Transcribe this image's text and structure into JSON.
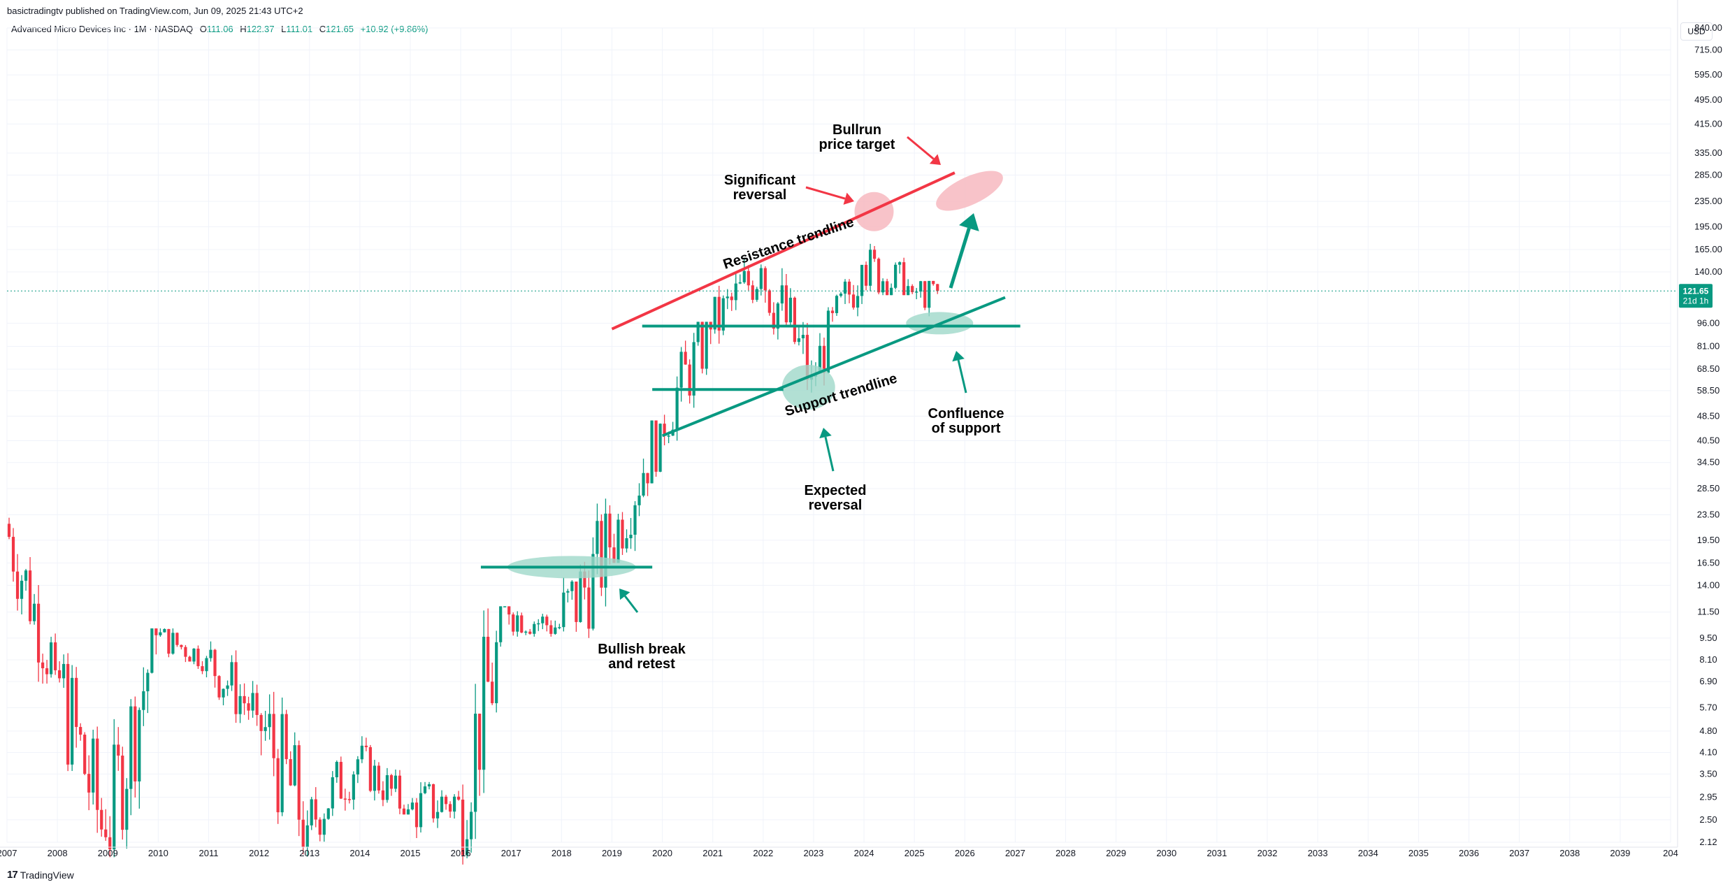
{
  "header": {
    "publisher": "basictradingtv published on TradingView.com, Jun 09, 2025 21:43 UTC+2",
    "symbol": "Advanced Micro Devices Inc · 1M · NASDAQ",
    "open_label": "O",
    "open": "111.06",
    "high_label": "H",
    "high": "122.37",
    "low_label": "L",
    "low": "111.01",
    "close_label": "C",
    "close": "121.65",
    "change": "+10.92 (+9.86%)",
    "currency": "USD"
  },
  "footer": {
    "logo": "17",
    "brand": "TradingView"
  },
  "colors": {
    "up": "#089981",
    "down": "#f23645",
    "resistance": "#f23645",
    "support": "#089981",
    "red_zone": "#f7b9c0",
    "green_zone": "#9fd8c9",
    "grid": "#f0f3fa"
  },
  "chart_data": {
    "type": "candlestick",
    "symbol": "Advanced Micro Devices Inc",
    "interval": "1M",
    "exchange": "NASDAQ",
    "y_scale": "log",
    "ylim": [
      2.12,
      840
    ],
    "xlim": [
      2007,
      2040
    ],
    "y_ticks": [
      "840.00",
      "715.00",
      "595.00",
      "495.00",
      "415.00",
      "335.00",
      "285.00",
      "235.00",
      "195.00",
      "165.00",
      "140.00",
      "96.00",
      "81.00",
      "68.50",
      "58.50",
      "48.50",
      "40.50",
      "34.50",
      "28.50",
      "23.50",
      "19.50",
      "16.50",
      "14.00",
      "11.50",
      "9.50",
      "8.10",
      "6.90",
      "5.70",
      "4.80",
      "4.10",
      "3.50",
      "2.95",
      "2.50",
      "2.12"
    ],
    "x_ticks": [
      "2007",
      "2008",
      "2009",
      "2010",
      "2011",
      "2012",
      "2013",
      "2014",
      "2015",
      "2016",
      "2017",
      "2018",
      "2019",
      "2020",
      "2021",
      "2022",
      "2023",
      "2024",
      "2025",
      "2026",
      "2027",
      "2028",
      "2029",
      "2030",
      "2031",
      "2032",
      "2033",
      "2034",
      "2035",
      "2036",
      "2037",
      "2038",
      "2039",
      "204"
    ],
    "last_price": "121.65",
    "last_price_countdown": "21d 1h",
    "yearly_ohlc": [
      {
        "year": 2007,
        "open": 22,
        "high": 23,
        "low": 6.8,
        "close": 7.5
      },
      {
        "year": 2008,
        "open": 7.5,
        "high": 8.5,
        "low": 1.6,
        "close": 2.2
      },
      {
        "year": 2009,
        "open": 2.2,
        "high": 10.2,
        "low": 1.9,
        "close": 9.7
      },
      {
        "year": 2010,
        "open": 9.7,
        "high": 10.2,
        "low": 6.8,
        "close": 8.2
      },
      {
        "year": 2011,
        "open": 8.2,
        "high": 9.6,
        "low": 4.3,
        "close": 5.4
      },
      {
        "year": 2012,
        "open": 5.4,
        "high": 8.3,
        "low": 1.8,
        "close": 2.4
      },
      {
        "year": 2013,
        "open": 2.4,
        "high": 4.6,
        "low": 2.0,
        "close": 3.9
      },
      {
        "year": 2014,
        "open": 3.9,
        "high": 4.8,
        "low": 2.6,
        "close": 2.7
      },
      {
        "year": 2015,
        "open": 2.7,
        "high": 3.3,
        "low": 1.6,
        "close": 2.9
      },
      {
        "year": 2016,
        "open": 2.9,
        "high": 12,
        "low": 1.8,
        "close": 11.3
      },
      {
        "year": 2017,
        "open": 11.3,
        "high": 15.6,
        "low": 9.6,
        "close": 10.3
      },
      {
        "year": 2018,
        "open": 10.3,
        "high": 34,
        "low": 9.0,
        "close": 18.5
      },
      {
        "year": 2019,
        "open": 18.5,
        "high": 47,
        "low": 16.5,
        "close": 45.9
      },
      {
        "year": 2020,
        "open": 45.9,
        "high": 97,
        "low": 36.8,
        "close": 91.7
      },
      {
        "year": 2021,
        "open": 91.7,
        "high": 164,
        "low": 72.5,
        "close": 143.9
      },
      {
        "year": 2022,
        "open": 143.9,
        "high": 164,
        "low": 54.6,
        "close": 64.8
      },
      {
        "year": 2023,
        "open": 64.8,
        "high": 132.8,
        "low": 60,
        "close": 147.4
      },
      {
        "year": 2024,
        "open": 147.4,
        "high": 227,
        "low": 118,
        "close": 120.6
      },
      {
        "year": 2025,
        "open": 120.6,
        "high": 131,
        "low": 76.5,
        "close": 121.65
      }
    ],
    "annotations": {
      "resistance_label": "Resistance trendline",
      "support_label": "Support trendline",
      "significant_reversal": [
        "Significant",
        "reversal"
      ],
      "bullrun_target": [
        "Bullrun",
        "price target"
      ],
      "confluence": [
        "Confluence",
        "of support"
      ],
      "expected_reversal": [
        "Expected",
        "reversal"
      ],
      "bullish_break": [
        "Bullish break",
        "and retest"
      ]
    },
    "levels": [
      {
        "name": "resistance-trendline",
        "from": {
          "t": 2019.0,
          "price": 92
        },
        "to": {
          "t": 2025.8,
          "price": 290
        }
      },
      {
        "name": "support-trendline",
        "from": {
          "t": 2020.0,
          "price": 42
        },
        "to": {
          "t": 2026.8,
          "price": 116
        }
      },
      {
        "name": "horizontal-96",
        "price": 94,
        "from_t": 2019.6,
        "to_t": 2027.1
      },
      {
        "name": "horizontal-58",
        "price": 59,
        "from_t": 2019.8,
        "to_t": 2022.4
      },
      {
        "name": "horizontal-16",
        "price": 16,
        "from_t": 2016.4,
        "to_t": 2019.8
      }
    ]
  }
}
